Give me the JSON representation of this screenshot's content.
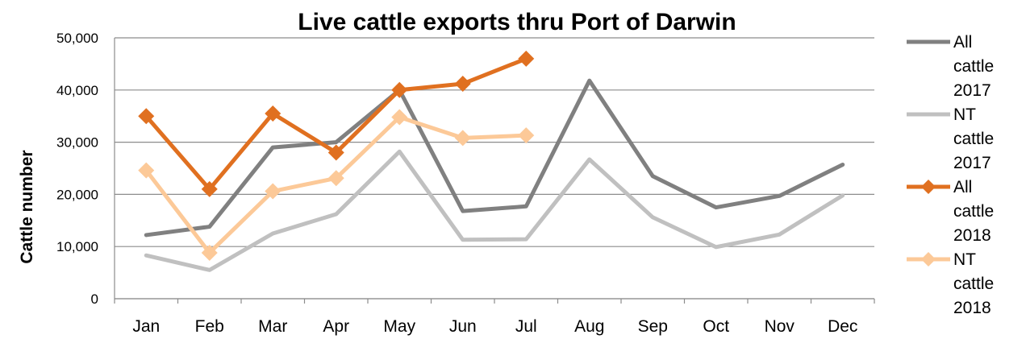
{
  "chart_data": {
    "type": "line",
    "title": "Live cattle exports thru Port of Darwin",
    "xlabel": "",
    "ylabel": "Cattle number",
    "ylim": [
      0,
      50000
    ],
    "y_ticks": [
      "0",
      "10,000",
      "20,000",
      "30,000",
      "40,000",
      "50,000"
    ],
    "grid": true,
    "legend_position": "right",
    "categories": [
      "Jan",
      "Feb",
      "Mar",
      "Apr",
      "May",
      "Jun",
      "Jul",
      "Aug",
      "Sep",
      "Oct",
      "Nov",
      "Dec"
    ],
    "series": [
      {
        "name": "All cattle 2017",
        "legend_lines": [
          "All",
          "cattle",
          "2017"
        ],
        "color": "#808080",
        "marker": "none",
        "values": [
          12200,
          13800,
          29000,
          30000,
          40000,
          16800,
          17700,
          41800,
          23500,
          17500,
          19700,
          25700
        ]
      },
      {
        "name": "NT cattle 2017",
        "legend_lines": [
          "NT",
          "cattle",
          "2017"
        ],
        "color": "#c0c0c0",
        "marker": "none",
        "values": [
          8300,
          5500,
          12500,
          16200,
          28200,
          11300,
          11400,
          26700,
          15600,
          9900,
          12300,
          19800
        ]
      },
      {
        "name": "All cattle 2018",
        "legend_lines": [
          "All",
          "cattle",
          "2018"
        ],
        "color": "#e07020",
        "marker": "diamond",
        "values": [
          35000,
          21000,
          35500,
          28000,
          40000,
          41200,
          46000,
          null,
          null,
          null,
          null,
          null
        ]
      },
      {
        "name": "NT cattle 2018",
        "legend_lines": [
          "NT",
          "cattle",
          "2018"
        ],
        "color": "#fcc998",
        "marker": "diamond",
        "values": [
          24600,
          8800,
          20600,
          23100,
          34800,
          30800,
          31300,
          null,
          null,
          null,
          null,
          null
        ]
      }
    ]
  }
}
